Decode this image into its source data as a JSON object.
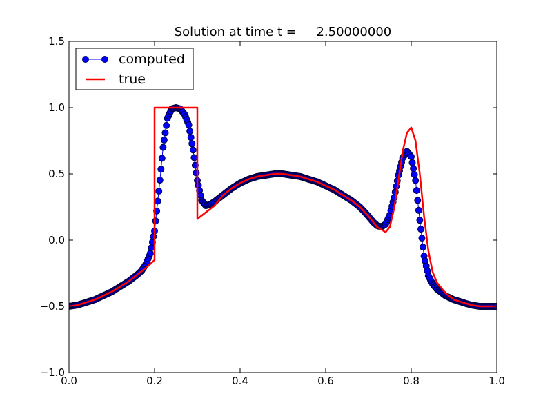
{
  "chart_data": {
    "type": "line",
    "title": "Solution at time t =     2.50000000",
    "xlabel": "",
    "ylabel": "",
    "xlim": [
      0.0,
      1.0
    ],
    "ylim": [
      -1.0,
      1.5
    ],
    "x_ticks": [
      0.0,
      0.2,
      0.4,
      0.6,
      0.8,
      1.0
    ],
    "x_tick_labels": [
      "0.0",
      "0.2",
      "0.4",
      "0.6",
      "0.8",
      "1.0"
    ],
    "y_ticks": [
      -1.0,
      -0.5,
      0.0,
      0.5,
      1.0,
      1.5
    ],
    "y_tick_labels": [
      "−1.0",
      "−0.5",
      "0.0",
      "0.5",
      "1.0",
      "1.5"
    ],
    "grid": false,
    "legend_position": "top-left",
    "series": [
      {
        "name": "computed",
        "color": "#0000ff",
        "marker": "circle",
        "x": [
          0.0,
          0.02,
          0.04,
          0.06,
          0.08,
          0.1,
          0.12,
          0.14,
          0.16,
          0.17,
          0.18,
          0.19,
          0.2,
          0.21,
          0.22,
          0.23,
          0.24,
          0.25,
          0.26,
          0.27,
          0.28,
          0.29,
          0.3,
          0.31,
          0.32,
          0.33,
          0.34,
          0.36,
          0.38,
          0.4,
          0.42,
          0.44,
          0.46,
          0.48,
          0.5,
          0.52,
          0.54,
          0.56,
          0.58,
          0.6,
          0.62,
          0.64,
          0.66,
          0.68,
          0.7,
          0.71,
          0.72,
          0.73,
          0.74,
          0.75,
          0.76,
          0.77,
          0.78,
          0.79,
          0.8,
          0.81,
          0.82,
          0.83,
          0.84,
          0.85,
          0.86,
          0.88,
          0.9,
          0.92,
          0.94,
          0.96,
          0.98,
          1.0
        ],
        "y": [
          -0.5,
          -0.49,
          -0.47,
          -0.45,
          -0.42,
          -0.39,
          -0.35,
          -0.31,
          -0.26,
          -0.23,
          -0.18,
          -0.1,
          0.07,
          0.37,
          0.7,
          0.92,
          0.99,
          1.0,
          0.99,
          0.95,
          0.87,
          0.68,
          0.45,
          0.3,
          0.26,
          0.27,
          0.29,
          0.34,
          0.39,
          0.43,
          0.46,
          0.48,
          0.49,
          0.5,
          0.5,
          0.49,
          0.48,
          0.46,
          0.44,
          0.41,
          0.38,
          0.34,
          0.3,
          0.25,
          0.18,
          0.14,
          0.11,
          0.1,
          0.12,
          0.19,
          0.32,
          0.49,
          0.62,
          0.67,
          0.63,
          0.45,
          0.15,
          -0.12,
          -0.27,
          -0.33,
          -0.37,
          -0.42,
          -0.45,
          -0.47,
          -0.49,
          -0.5,
          -0.5,
          -0.5
        ]
      },
      {
        "name": "true",
        "color": "#ff0000",
        "marker": "none",
        "x": [
          0.0,
          0.02,
          0.04,
          0.06,
          0.08,
          0.1,
          0.12,
          0.14,
          0.16,
          0.18,
          0.2,
          0.2,
          0.3,
          0.3,
          0.32,
          0.34,
          0.36,
          0.38,
          0.4,
          0.42,
          0.44,
          0.46,
          0.48,
          0.5,
          0.52,
          0.54,
          0.56,
          0.58,
          0.6,
          0.62,
          0.64,
          0.66,
          0.68,
          0.7,
          0.72,
          0.74,
          0.75,
          0.76,
          0.77,
          0.78,
          0.79,
          0.8,
          0.81,
          0.82,
          0.83,
          0.84,
          0.85,
          0.86,
          0.88,
          0.9,
          0.92,
          0.94,
          0.96,
          0.98,
          1.0
        ],
        "y": [
          -0.5,
          -0.49,
          -0.47,
          -0.45,
          -0.42,
          -0.39,
          -0.35,
          -0.31,
          -0.26,
          -0.21,
          -0.15,
          1.0,
          1.0,
          0.16,
          0.21,
          0.26,
          0.34,
          0.39,
          0.43,
          0.46,
          0.48,
          0.49,
          0.5,
          0.5,
          0.49,
          0.48,
          0.46,
          0.44,
          0.41,
          0.38,
          0.34,
          0.3,
          0.25,
          0.18,
          0.1,
          0.06,
          0.1,
          0.24,
          0.45,
          0.67,
          0.81,
          0.85,
          0.75,
          0.5,
          0.18,
          -0.08,
          -0.24,
          -0.32,
          -0.4,
          -0.45,
          -0.47,
          -0.49,
          -0.5,
          -0.5,
          -0.5
        ]
      }
    ]
  }
}
